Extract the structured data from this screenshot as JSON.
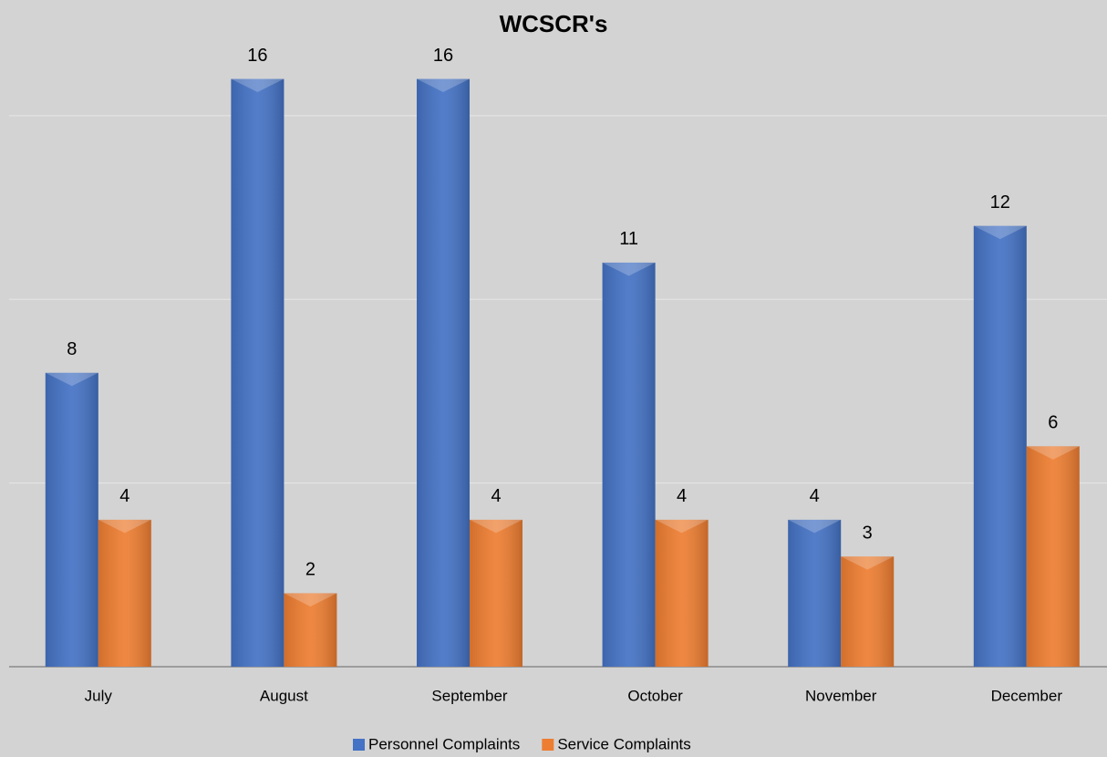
{
  "chart_data": {
    "type": "bar",
    "title": "WCSCR's",
    "categories": [
      "July",
      "August",
      "September",
      "October",
      "November",
      "December"
    ],
    "series": [
      {
        "name": "Personnel Complaints",
        "color": "#4472c4",
        "values": [
          8,
          16,
          16,
          11,
          4,
          12
        ]
      },
      {
        "name": "Service Complaints",
        "color": "#ed7d31",
        "values": [
          4,
          2,
          4,
          4,
          3,
          6
        ]
      }
    ],
    "ylim": [
      0,
      18
    ],
    "yticks": [
      0,
      5,
      10,
      15
    ],
    "grid": true,
    "legend": "bottom"
  }
}
